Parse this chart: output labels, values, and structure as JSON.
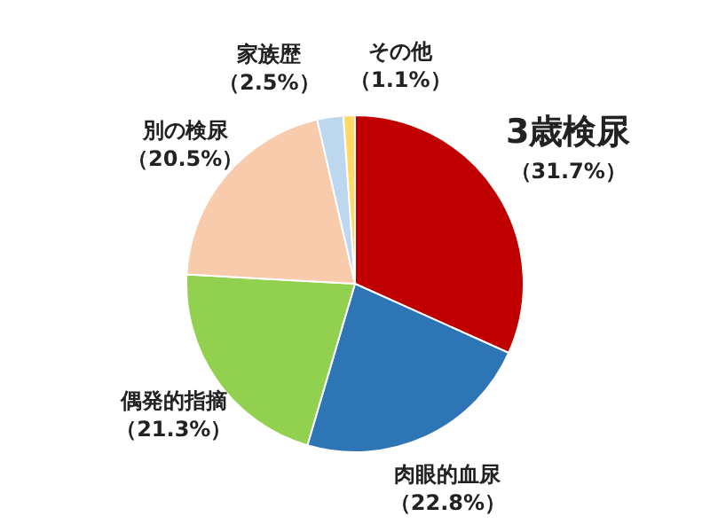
{
  "chart_data": {
    "type": "pie",
    "categories": [
      "3歳検尿",
      "肉眼的血尿",
      "偶発的指摘",
      "別の検尿",
      "家族歴",
      "その他"
    ],
    "values": [
      31.7,
      22.8,
      21.3,
      20.5,
      2.5,
      1.1
    ],
    "value_labels": [
      "（31.7%）",
      "（22.8%）",
      "（21.3%）",
      "（20.5%）",
      "（2.5%）",
      "（1.1%）"
    ],
    "colors": [
      "#c00000",
      "#2e75b6",
      "#92d050",
      "#f8cbad",
      "#bdd7ee",
      "#ffd966"
    ]
  }
}
